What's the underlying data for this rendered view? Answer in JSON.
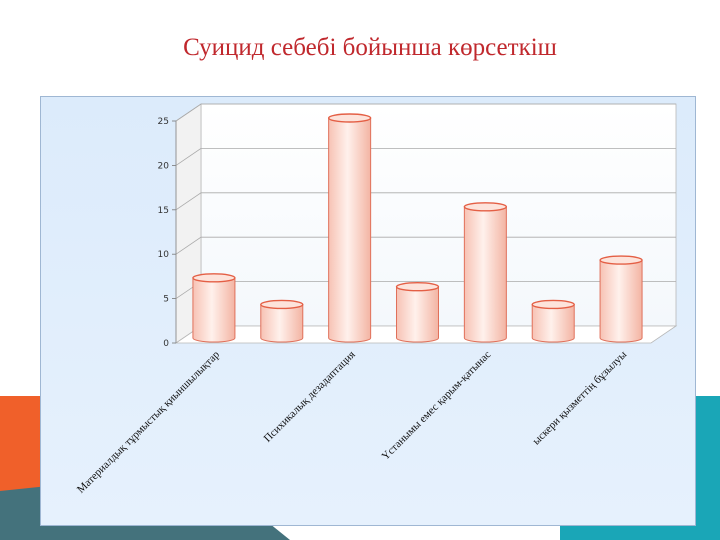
{
  "title": "Суицид себебі бойынша көрсеткіш",
  "colors": {
    "title": "#c0282d",
    "accent_orange": "#f0602a",
    "accent_teal_dark": "#44727c",
    "accent_teal": "#1aa6b7",
    "panel_bg": "#dcebfb",
    "bar_fill": "#fbd6cc",
    "bar_stroke": "#e45f45"
  },
  "chart_data": {
    "type": "bar",
    "style": "3d-cylinder",
    "title": "",
    "xlabel": "",
    "ylabel": "",
    "ylim": [
      0,
      25
    ],
    "yticks": [
      0,
      5,
      10,
      15,
      20,
      25
    ],
    "grid": true,
    "legend": "none",
    "categories": [
      "Материалдық тұрмыстық қиыншылықтар",
      "",
      "Психикалық дезадаптация",
      "",
      "Үстанымы емес қарым-қатынас",
      "",
      "ыскери қызметтің бұзылуы"
    ],
    "values": [
      7,
      4,
      25,
      6,
      15,
      4,
      9
    ]
  }
}
